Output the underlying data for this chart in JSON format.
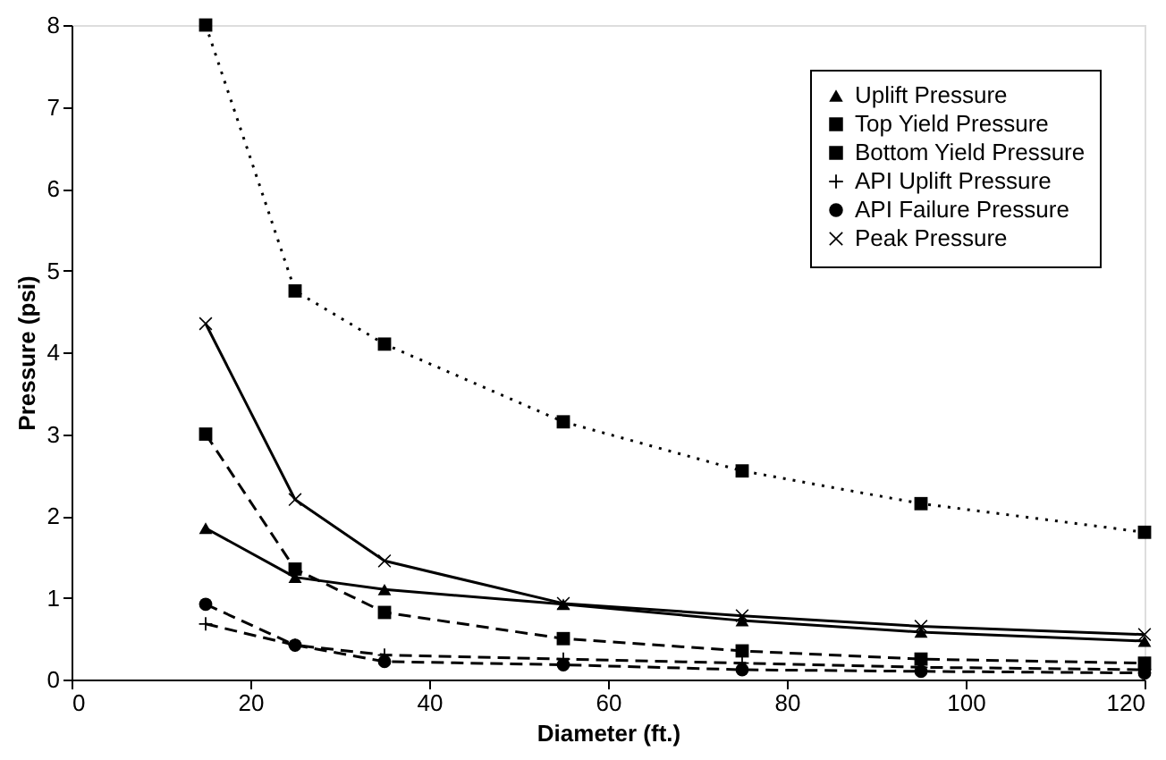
{
  "chart_data": {
    "type": "line",
    "x": [
      15,
      25,
      35,
      55,
      75,
      95,
      120
    ],
    "xlabel": "Diameter (ft.)",
    "ylabel": "Pressure (psi)",
    "xlim": [
      0,
      120
    ],
    "xticks": [
      0,
      20,
      40,
      60,
      80,
      100,
      120
    ],
    "ylim": [
      0,
      8
    ],
    "yticks": [
      0,
      1,
      2,
      3,
      4,
      5,
      6,
      7,
      8
    ],
    "grid": false,
    "legend": "top right",
    "series": [
      {
        "name": "Uplift Pressure",
        "color": "#000000",
        "marker": "triangle",
        "line_style": "solid",
        "values": [
          1.85,
          1.25,
          1.1,
          0.92,
          0.72,
          0.58,
          0.47
        ]
      },
      {
        "name": "Top Yield Pressure",
        "color": "#000000",
        "marker": "square",
        "line_style": "dashed",
        "values": [
          3.0,
          1.35,
          0.82,
          0.5,
          0.35,
          0.25,
          0.2
        ]
      },
      {
        "name": "Bottom Yield Pressure",
        "color": "#000000",
        "marker": "square",
        "line_style": "dotted",
        "values": [
          8.0,
          4.75,
          4.1,
          3.15,
          2.55,
          2.15,
          1.8
        ]
      },
      {
        "name": "API Uplift Pressure",
        "color": "#000000",
        "marker": "cross",
        "line_style": "dashed",
        "values": [
          0.68,
          0.42,
          0.3,
          0.25,
          0.2,
          0.15,
          0.12
        ]
      },
      {
        "name": "API Failure Pressure",
        "color": "#000000",
        "marker": "circle",
        "line_style": "dashed",
        "values": [
          0.92,
          0.42,
          0.22,
          0.18,
          0.12,
          0.1,
          0.08
        ]
      },
      {
        "name": "Peak Pressure",
        "color": "#000000",
        "marker": "x",
        "line_style": "solid",
        "values": [
          4.35,
          2.2,
          1.45,
          0.93,
          0.78,
          0.65,
          0.55
        ]
      }
    ]
  }
}
